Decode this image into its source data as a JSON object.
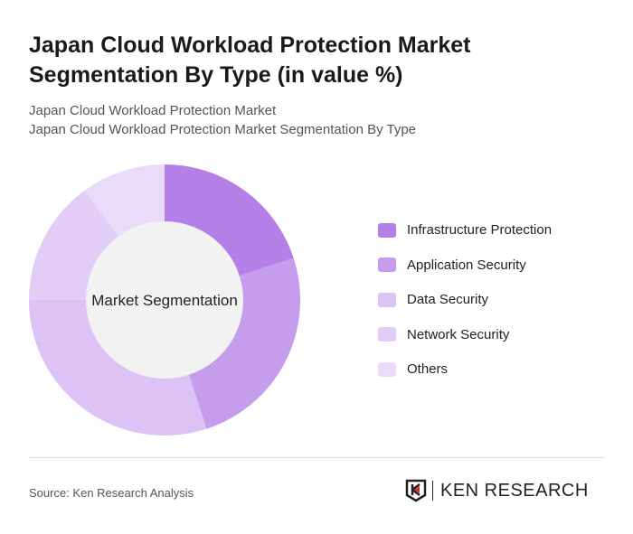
{
  "title": "Japan Cloud Workload Protection Market Segmentation By Type (in value %)",
  "subtitle_lines": [
    "Japan Cloud Workload Protection Market",
    "Japan Cloud Workload Protection Market Segmentation By Type"
  ],
  "chart_data": {
    "type": "pie",
    "donut": true,
    "center_label": "Market Segmentation",
    "categories": [
      "Infrastructure Protection",
      "Application Security",
      "Data Security",
      "Network Security",
      "Others"
    ],
    "values": [
      20,
      25,
      30,
      15,
      10
    ],
    "colors": [
      "#b57fe8",
      "#c69cec",
      "#dcc2f5",
      "#e2cdf7",
      "#e9dcf8"
    ],
    "legend_position": "right"
  },
  "source": "Source: Ken Research Analysis",
  "logo_text": "KEN RESEARCH"
}
